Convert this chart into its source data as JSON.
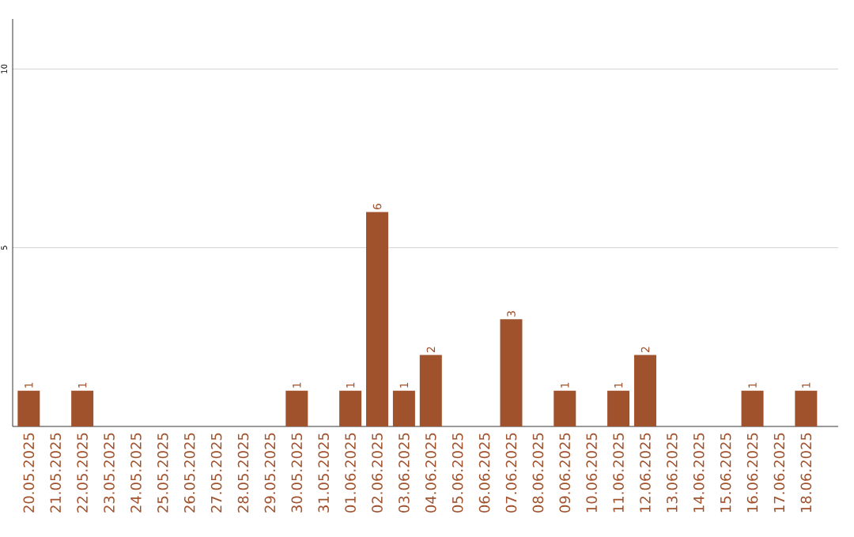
{
  "chart_data": {
    "type": "bar",
    "categories": [
      "20.05.2025",
      "21.05.2025",
      "22.05.2025",
      "23.05.2025",
      "24.05.2025",
      "25.05.2025",
      "26.05.2025",
      "27.05.2025",
      "28.05.2025",
      "29.05.2025",
      "30.05.2025",
      "31.05.2025",
      "01.06.2025",
      "02.06.2025",
      "03.06.2025",
      "04.06.2025",
      "05.06.2025",
      "06.06.2025",
      "07.06.2025",
      "08.06.2025",
      "09.06.2025",
      "10.06.2025",
      "11.06.2025",
      "12.06.2025",
      "13.06.2025",
      "14.06.2025",
      "15.06.2025",
      "16.06.2025",
      "17.06.2025",
      "18.06.2025"
    ],
    "values": [
      1,
      0,
      1,
      0,
      0,
      0,
      0,
      0,
      0,
      0,
      1,
      0,
      1,
      6,
      1,
      2,
      0,
      0,
      3,
      0,
      1,
      0,
      1,
      2,
      0,
      0,
      0,
      1,
      0,
      1
    ],
    "value_labels": [
      "1",
      null,
      "1",
      null,
      null,
      null,
      null,
      null,
      null,
      null,
      "1",
      null,
      "1",
      "6",
      "1",
      "2",
      null,
      null,
      "3",
      null,
      "1",
      null,
      "1",
      "2",
      null,
      null,
      null,
      "1",
      null,
      "1"
    ],
    "color": "#a0522d",
    "ylim": [
      0,
      11.4
    ],
    "yticks": [
      5,
      10
    ],
    "grid": "y"
  }
}
